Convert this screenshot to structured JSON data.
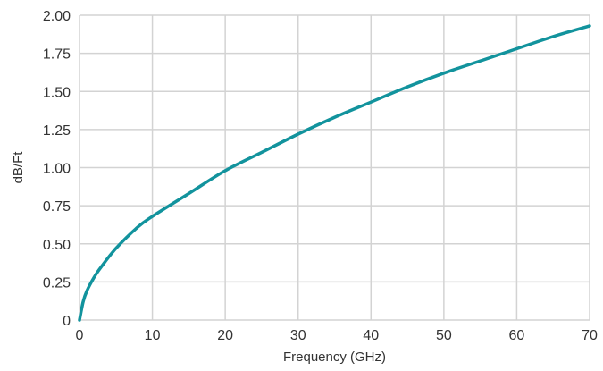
{
  "chart_data": {
    "type": "line",
    "xlabel": "Frequency (GHz)",
    "ylabel": "dB/Ft",
    "xlim": [
      0,
      70
    ],
    "ylim": [
      0,
      2.0
    ],
    "x_ticks": [
      "0",
      "10",
      "20",
      "30",
      "40",
      "50",
      "60",
      "70"
    ],
    "y_ticks": [
      "0",
      "0.25",
      "0.50",
      "0.75",
      "1.00",
      "1.25",
      "1.50",
      "1.75",
      "2.00"
    ],
    "grid": true,
    "line_color": "#12939d",
    "grid_color": "#d3d3d3",
    "series": [
      {
        "x": [
          0,
          0.5,
          1,
          2,
          3,
          5,
          8,
          10,
          15,
          20,
          25,
          30,
          35,
          40,
          45,
          50,
          55,
          60,
          65,
          70
        ],
        "y": [
          0,
          0.12,
          0.19,
          0.28,
          0.35,
          0.47,
          0.61,
          0.68,
          0.83,
          0.98,
          1.1,
          1.22,
          1.33,
          1.43,
          1.53,
          1.62,
          1.7,
          1.78,
          1.86,
          1.93
        ]
      }
    ]
  }
}
